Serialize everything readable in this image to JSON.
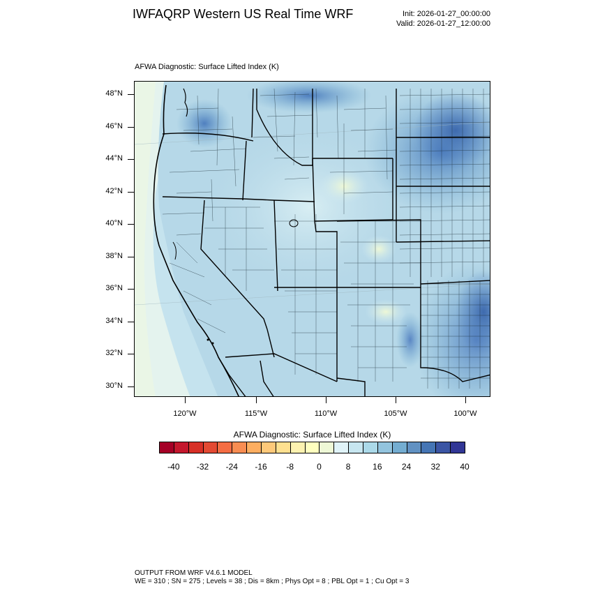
{
  "header": {
    "title": "IWFAQRP Western US Real Time WRF",
    "init": "Init: 2026-01-27_00:00:00",
    "valid": "Valid: 2026-01-27_12:00:00"
  },
  "plot": {
    "subtitle": "AFWA Diagnostic: Surface Lifted Index   (K)",
    "lat_labels": [
      "48°N",
      "46°N",
      "44°N",
      "42°N",
      "40°N",
      "38°N",
      "36°N",
      "34°N",
      "32°N",
      "30°N"
    ],
    "lon_labels": [
      "120°W",
      "115°W",
      "110°W",
      "105°W",
      "100°W"
    ]
  },
  "colorbar": {
    "title": "AFWA Diagnostic: Surface Lifted Index  (K)",
    "labels": [
      "-40",
      "-32",
      "-24",
      "-16",
      "-8",
      "0",
      "8",
      "16",
      "24",
      "32",
      "40"
    ],
    "colors": [
      "#a50026",
      "#c4172d",
      "#d73027",
      "#e34a33",
      "#f46d43",
      "#f88d52",
      "#fdae61",
      "#fec97a",
      "#fee090",
      "#fdf2b0",
      "#ffffbf",
      "#eef8d6",
      "#e0f3f8",
      "#c7e6f0",
      "#abd9e9",
      "#93c4de",
      "#74add1",
      "#6191c2",
      "#4575b4",
      "#3b55a4",
      "#313695"
    ]
  },
  "footer": {
    "line1": "OUTPUT FROM WRF V4.6.1 MODEL",
    "line2": "WE = 310 ; SN = 275 ; Levels = 38 ; Dis = 8km ; Phys Opt = 8 ; PBL Opt = 1 ; Cu Opt = 3"
  }
}
